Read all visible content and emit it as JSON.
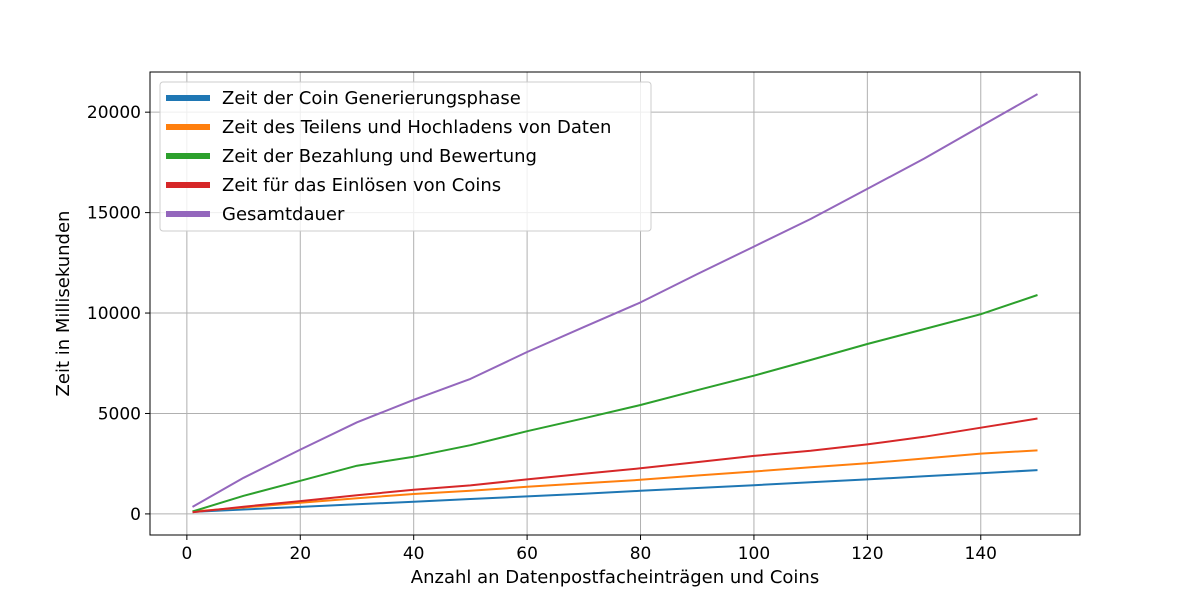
{
  "chart_data": {
    "type": "line",
    "xlabel": "Anzahl an Datenpostfacheinträgen und Coins",
    "ylabel": "Zeit in Millisekunden",
    "xlim": [
      -6.5,
      157.5
    ],
    "ylim": [
      -1050,
      22000
    ],
    "xticks": [
      0,
      20,
      40,
      60,
      80,
      100,
      120,
      140
    ],
    "yticks": [
      0,
      5000,
      10000,
      15000,
      20000
    ],
    "grid": true,
    "legend_position": "upper left",
    "x": [
      1,
      10,
      20,
      30,
      40,
      50,
      60,
      70,
      80,
      90,
      100,
      110,
      120,
      130,
      140,
      150
    ],
    "series": [
      {
        "name": "Zeit der Coin Generierungsphase",
        "color": "#1f77b4",
        "values": [
          100,
          220,
          350,
          480,
          610,
          740,
          870,
          1000,
          1150,
          1290,
          1430,
          1580,
          1720,
          1870,
          2020,
          2180
        ]
      },
      {
        "name": "Zeit des Teilens und Hochladens von Daten",
        "color": "#ff7f0e",
        "values": [
          120,
          320,
          560,
          780,
          990,
          1150,
          1350,
          1530,
          1700,
          1910,
          2110,
          2320,
          2520,
          2760,
          3000,
          3160
        ]
      },
      {
        "name": "Zeit der Bezahlung und Bewertung",
        "color": "#2ca02c",
        "values": [
          120,
          900,
          1650,
          2400,
          2850,
          3420,
          4120,
          4760,
          5420,
          6160,
          6880,
          7660,
          8460,
          9200,
          9940,
          10900
        ]
      },
      {
        "name": "Zeit für das Einlösen von Coins",
        "color": "#d62728",
        "values": [
          80,
          360,
          640,
          930,
          1200,
          1420,
          1720,
          2000,
          2270,
          2580,
          2890,
          3140,
          3460,
          3840,
          4290,
          4750
        ]
      },
      {
        "name": "Gesamtdauer",
        "color": "#9467bd",
        "values": [
          350,
          1800,
          3200,
          4560,
          5680,
          6720,
          8060,
          9300,
          10530,
          11940,
          13310,
          14680,
          16180,
          17690,
          19300,
          20900
        ]
      }
    ]
  }
}
